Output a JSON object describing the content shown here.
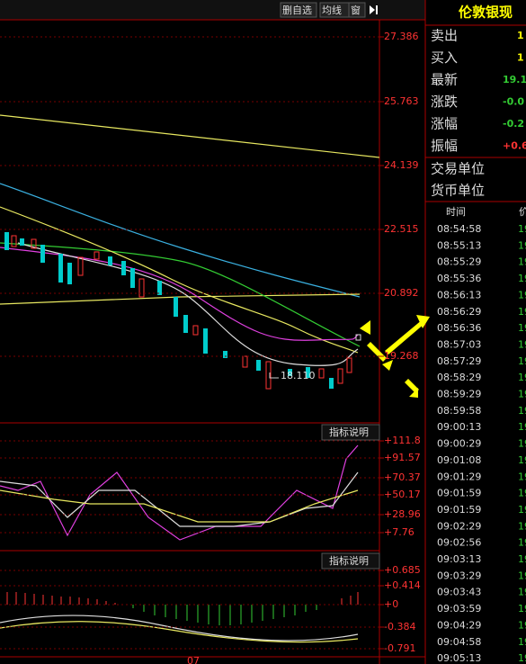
{
  "toolbar": {
    "buttons": [
      "删自选",
      "均线",
      "窗"
    ]
  },
  "quote": {
    "title": "伦敦银现",
    "rows": [
      {
        "label": "卖出",
        "value": "1"
      },
      {
        "label": "买入",
        "value": "1"
      },
      {
        "label": "最新",
        "value": "19.1"
      },
      {
        "label": "涨跌",
        "value": "-0.0"
      },
      {
        "label": "涨幅",
        "value": "-0.2"
      },
      {
        "label": "振幅",
        "value": "+0.6"
      }
    ],
    "units": [
      "交易单位",
      "货币单位"
    ]
  },
  "ticks": {
    "header_time": "时间",
    "header_price": "价",
    "rows": [
      {
        "time": "08:54:58",
        "price": "19"
      },
      {
        "time": "08:55:13",
        "price": "19"
      },
      {
        "time": "08:55:29",
        "price": "19"
      },
      {
        "time": "08:55:36",
        "price": "19"
      },
      {
        "time": "08:56:13",
        "price": "19"
      },
      {
        "time": "08:56:29",
        "price": "19"
      },
      {
        "time": "08:56:36",
        "price": "19"
      },
      {
        "time": "08:57:03",
        "price": "19"
      },
      {
        "time": "08:57:29",
        "price": "19"
      },
      {
        "time": "08:58:29",
        "price": "19"
      },
      {
        "time": "08:59:29",
        "price": "19"
      },
      {
        "time": "08:59:58",
        "price": "19"
      },
      {
        "time": "09:00:13",
        "price": "19"
      },
      {
        "time": "09:00:29",
        "price": "19"
      },
      {
        "time": "09:01:08",
        "price": "19"
      },
      {
        "time": "09:01:29",
        "price": "19"
      },
      {
        "time": "09:01:59",
        "price": "19"
      },
      {
        "time": "09:01:59",
        "price": "19"
      },
      {
        "time": "09:02:29",
        "price": "19"
      },
      {
        "time": "09:02:56",
        "price": "19"
      },
      {
        "time": "09:03:13",
        "price": "19"
      },
      {
        "time": "09:03:29",
        "price": "19"
      },
      {
        "time": "09:03:43",
        "price": "19"
      },
      {
        "time": "09:03:59",
        "price": "19"
      },
      {
        "time": "09:04:29",
        "price": "19"
      },
      {
        "time": "09:04:58",
        "price": "19"
      },
      {
        "time": "09:05:13",
        "price": "19"
      }
    ]
  },
  "main_chart": {
    "price_axis": [
      "27.386",
      "25.763",
      "24.139",
      "22.515",
      "20.892",
      "19.268"
    ],
    "low_label": "18.110"
  },
  "indicator1": {
    "button": "指标说明",
    "axis": [
      "+111.8",
      "+91.57",
      "+70.37",
      "+50.17",
      "+28.96",
      "+7.76"
    ]
  },
  "indicator2": {
    "button": "指标说明",
    "axis": [
      "+0.685",
      "+0.414",
      "+0",
      "-0.384",
      "-0.791"
    ]
  },
  "x_axis": [
    "07"
  ]
}
